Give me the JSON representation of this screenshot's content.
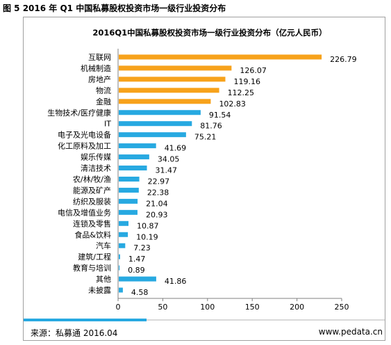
{
  "figure": {
    "caption": "图 5 2016 年 Q1 中国私募股权投资市场一级行业投资分布"
  },
  "chart_data": {
    "type": "bar",
    "orientation": "horizontal",
    "title": "2016Q1中国私募股权投资市场一级行业投资分布（亿元人民币）",
    "xlim": [
      0,
      250
    ],
    "xticks": [
      "0",
      "50",
      "100",
      "150",
      "200",
      "250"
    ],
    "grid": false,
    "colors": {
      "highlight": "#f7a21b",
      "normal": "#27a9e1"
    },
    "categories": [
      "互联网",
      "机械制造",
      "房地产",
      "物流",
      "金融",
      "生物技术/医疗健康",
      "IT",
      "电子及光电设备",
      "化工原料及加工",
      "娱乐传媒",
      "清洁技术",
      "农/林/牧/渔",
      "能源及矿产",
      "纺织及服装",
      "电信及增值业务",
      "连锁及零售",
      "食品&饮料",
      "汽车",
      "建筑/工程",
      "教育与培训",
      "其他",
      "未披露"
    ],
    "values": [
      226.79,
      126.07,
      119.16,
      112.25,
      102.83,
      91.54,
      81.76,
      75.21,
      41.69,
      34.05,
      31.47,
      22.97,
      22.38,
      21.04,
      20.93,
      10.87,
      10.19,
      7.23,
      1.47,
      0.89,
      41.86,
      4.58
    ],
    "value_labels": [
      "226.79",
      "126.07",
      "119.16",
      "112.25",
      "102.83",
      "91.54",
      "81.76",
      "75.21",
      "41.69",
      "34.05",
      "31.47",
      "22.97",
      "22.38",
      "21.04",
      "20.93",
      "10.87",
      "10.19",
      "7.23",
      "1.47",
      "0.89",
      "41.86",
      "4.58"
    ],
    "highlighted": [
      true,
      true,
      true,
      true,
      true,
      false,
      false,
      false,
      false,
      false,
      false,
      false,
      false,
      false,
      false,
      false,
      false,
      false,
      false,
      false,
      false,
      false
    ]
  },
  "footer": {
    "source": "来源：私募通 2016.04",
    "url": "www.pedata.cn"
  }
}
